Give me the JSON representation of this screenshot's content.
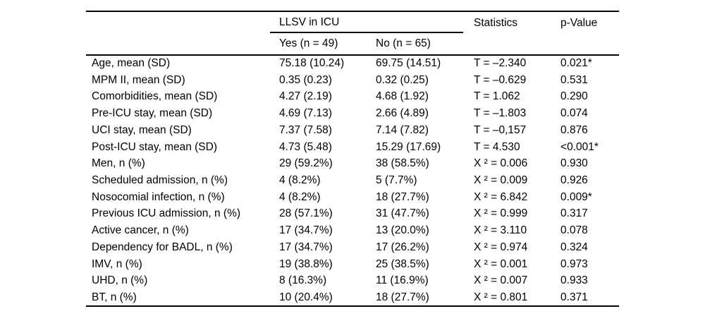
{
  "table": {
    "spanner": "LLSV in ICU",
    "columns": {
      "yes": "Yes (n = 49)",
      "no": "No (n = 65)",
      "statistics": "Statistics",
      "p_value": "p-Value"
    },
    "rows": [
      {
        "label": "Age, mean (SD)",
        "yes": "75.18 (10.24)",
        "no": "69.75 (14.51)",
        "statistic": "T = –2.340",
        "p_value": "0.021*"
      },
      {
        "label": "MPM II, mean (SD)",
        "yes": "0.35 (0.23)",
        "no": "0.32 (0.25)",
        "statistic": "T = –0.629",
        "p_value": "0.531"
      },
      {
        "label": "Comorbidities, mean (SD)",
        "yes": "4.27 (2.19)",
        "no": "4.68 (1.92)",
        "statistic": "T = 1.062",
        "p_value": "0.290"
      },
      {
        "label": "Pre-ICU stay, mean (SD)",
        "yes": "4.69 (7.13)",
        "no": "2.66 (4.89)",
        "statistic": "T = –1.803",
        "p_value": "0.074"
      },
      {
        "label": "UCI stay, mean (SD)",
        "yes": "7.37 (7.58)",
        "no": "7.14 (7.82)",
        "statistic": "T = –0,157",
        "p_value": "0.876"
      },
      {
        "label": "Post-ICU stay, mean (SD)",
        "yes": "4.73 (5.48)",
        "no": "15.29 (17.69)",
        "statistic": "T = 4.530",
        "p_value": "<0.001*"
      },
      {
        "label": "Men, n (%)",
        "yes": "29 (59.2%)",
        "no": "38 (58.5%)",
        "statistic": "X ² = 0.006",
        "p_value": "0.930"
      },
      {
        "label": "Scheduled admission, n (%)",
        "yes": "4 (8.2%)",
        "no": "5 (7.7%)",
        "statistic": "X ² = 0.009",
        "p_value": "0.926"
      },
      {
        "label": "Nosocomial infection, n (%)",
        "yes": "4 (8.2%)",
        "no": "18 (27.7%)",
        "statistic": "X ² = 6.842",
        "p_value": "0.009*"
      },
      {
        "label": "Previous ICU admission, n (%)",
        "yes": "28 (57.1%)",
        "no": "31 (47.7%)",
        "statistic": "X ² = 0.999",
        "p_value": "0.317"
      },
      {
        "label": "Active cancer, n (%)",
        "yes": "17 (34.7%)",
        "no": "13 (20.0%)",
        "statistic": "X ² = 3.110",
        "p_value": "0.078"
      },
      {
        "label": "Dependency for BADL, n (%)",
        "yes": "17 (34.7%)",
        "no": "17 (26.2%)",
        "statistic": "X ² = 0.974",
        "p_value": "0.324"
      },
      {
        "label": "IMV, n (%)",
        "yes": "19 (38.8%)",
        "no": "25 (38.5%)",
        "statistic": "X ² = 0.001",
        "p_value": "0.973"
      },
      {
        "label": "UHD, n (%)",
        "yes": "8 (16.3%)",
        "no": "11 (16.9%)",
        "statistic": "X ² = 0.007",
        "p_value": "0.933"
      },
      {
        "label": "BT, n (%)",
        "yes": "10 (20.4%)",
        "no": "18 (27.7%)",
        "statistic": "X ² = 0.801",
        "p_value": "0.371"
      }
    ],
    "colors": {
      "text": "#000000",
      "rule": "#000000",
      "background": "#ffffff"
    }
  }
}
